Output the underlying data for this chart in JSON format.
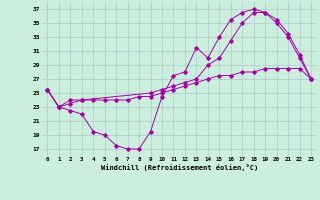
{
  "xlabel": "Windchill (Refroidissement éolien,°C)",
  "background_color": "#cceedd",
  "grid_color": "#aacccc",
  "line_color": "#aa00aa",
  "xlim": [
    -0.5,
    23.5
  ],
  "ylim": [
    16,
    38
  ],
  "yticks": [
    17,
    19,
    21,
    23,
    25,
    27,
    29,
    31,
    33,
    35,
    37
  ],
  "xticks": [
    0,
    1,
    2,
    3,
    4,
    5,
    6,
    7,
    8,
    9,
    10,
    11,
    12,
    13,
    14,
    15,
    16,
    17,
    18,
    19,
    20,
    21,
    22,
    23
  ],
  "line1_x": [
    0,
    1,
    2,
    3,
    4,
    5,
    6,
    7,
    8,
    9,
    10,
    11,
    12,
    13,
    14,
    15,
    16,
    17,
    18,
    19,
    20,
    21,
    22,
    23
  ],
  "line1_y": [
    25.5,
    23.0,
    22.5,
    22.0,
    19.5,
    19.0,
    17.5,
    17.0,
    17.0,
    19.5,
    24.5,
    27.5,
    28.0,
    31.5,
    30.0,
    33.0,
    35.5,
    36.5,
    37.0,
    36.5,
    35.0,
    33.0,
    30.0,
    27.0
  ],
  "line2_x": [
    0,
    1,
    2,
    3,
    4,
    5,
    6,
    7,
    8,
    9,
    10,
    11,
    12,
    13,
    14,
    15,
    16,
    17,
    18,
    19,
    20,
    21,
    22,
    23
  ],
  "line2_y": [
    25.5,
    23.0,
    23.5,
    24.0,
    24.0,
    24.0,
    24.0,
    24.0,
    24.5,
    24.5,
    25.0,
    25.5,
    26.0,
    26.5,
    27.0,
    27.5,
    27.5,
    28.0,
    28.0,
    28.5,
    28.5,
    28.5,
    28.5,
    27.0
  ],
  "line3_x": [
    0,
    1,
    2,
    3,
    9,
    10,
    11,
    12,
    13,
    14,
    15,
    16,
    17,
    18,
    19,
    20,
    21,
    22,
    23
  ],
  "line3_y": [
    25.5,
    23.0,
    24.0,
    24.0,
    25.0,
    25.5,
    26.0,
    26.5,
    27.0,
    29.0,
    30.0,
    32.5,
    35.0,
    36.5,
    36.5,
    35.5,
    33.5,
    30.5,
    27.0
  ]
}
